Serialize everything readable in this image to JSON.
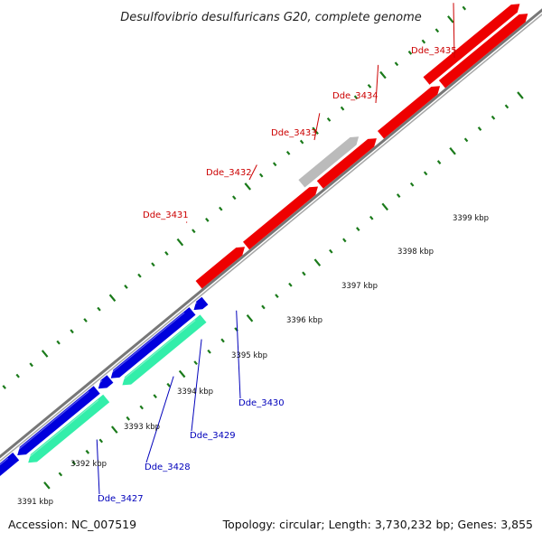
{
  "title": "Desulfovibrio desulfuricans G20, complete genome",
  "footer": {
    "accession": "Accession: NC_007519",
    "summary": "Topology: circular; Length: 3,730,232 bp; Genes: 3,855"
  },
  "colors": {
    "forward_strand": "#ee0000",
    "reverse_strand": "#0000dd",
    "pseudogene": "#bbbbbb",
    "rna": "#33eeaa",
    "backbone": "#777777",
    "ticks": "#1a7a1a",
    "forward_label": "#cc0000",
    "reverse_label": "#0000bb"
  },
  "kbp_labels": [
    "3391 kbp",
    "3392 kbp",
    "3393 kbp",
    "3394 kbp",
    "3395 kbp",
    "3396 kbp",
    "3397 kbp",
    "3398 kbp",
    "3399 kbp"
  ],
  "forward_genes": [
    {
      "label": "Dde_3431",
      "kind": "cds"
    },
    {
      "label": "Dde_3432",
      "kind": "cds"
    },
    {
      "label": "Dde_3433",
      "kind": "pseudogene"
    },
    {
      "label": "Dde_3434",
      "kind": "cds"
    },
    {
      "label": "Dde_3435",
      "kind": "cds"
    }
  ],
  "reverse_genes": [
    {
      "label": "Dde_3427",
      "kind": "rna"
    },
    {
      "label": "Dde_3428",
      "kind": "cds"
    },
    {
      "label": "Dde_3429",
      "kind": "rna"
    },
    {
      "label": "Dde_3430",
      "kind": "cds"
    }
  ]
}
